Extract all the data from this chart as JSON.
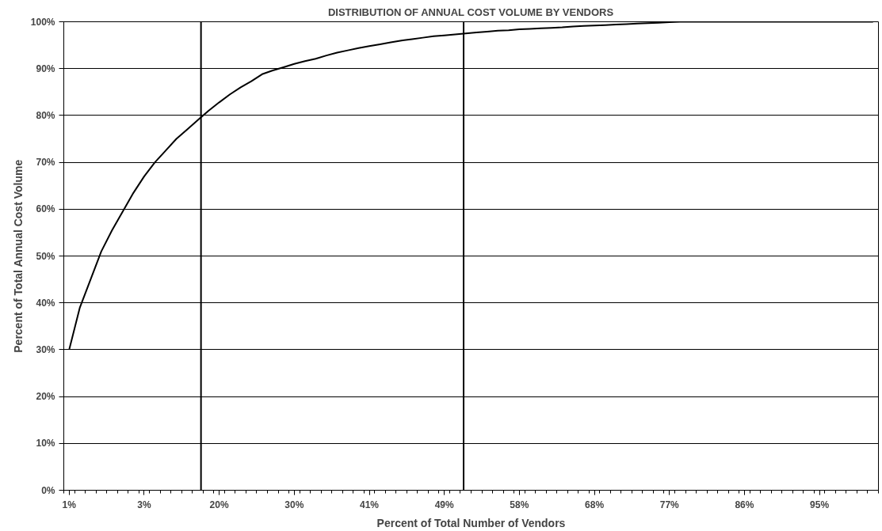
{
  "chart_data": {
    "type": "line",
    "title": "DISTRIBUTION OF ANNUAL COST VOLUME BY VENDORS",
    "xlabel": "Percent of Total Number of Vendors",
    "ylabel": "Percent of Total Annual Cost Volume",
    "categories": [
      "1%",
      null,
      null,
      null,
      null,
      null,
      null,
      "3%",
      null,
      null,
      null,
      null,
      null,
      null,
      "20%",
      null,
      null,
      null,
      null,
      null,
      null,
      "30%",
      null,
      null,
      null,
      null,
      null,
      null,
      "41%",
      null,
      null,
      null,
      null,
      null,
      null,
      "49%",
      null,
      null,
      null,
      null,
      null,
      null,
      "58%",
      null,
      null,
      null,
      null,
      null,
      null,
      "68%",
      null,
      null,
      null,
      null,
      null,
      null,
      "77%",
      null,
      null,
      null,
      null,
      null,
      null,
      "86%",
      null,
      null,
      null,
      null,
      null,
      null,
      "95%",
      null,
      null,
      null,
      null,
      null
    ],
    "series": [
      {
        "color": "#000000",
        "values": [
          30,
          39,
          45,
          51,
          55.5,
          59.5,
          63.5,
          67,
          70,
          72.5,
          75,
          77,
          79,
          81,
          82.8,
          84.5,
          86,
          87.3,
          88.8,
          89.6,
          90.3,
          91,
          91.6,
          92.1,
          92.8,
          93.4,
          93.9,
          94.4,
          94.8,
          95.2,
          95.6,
          96,
          96.3,
          96.6,
          96.9,
          97.1,
          97.3,
          97.5,
          97.7,
          97.9,
          98.1,
          98.2,
          98.4,
          98.5,
          98.6,
          98.7,
          98.8,
          99,
          99.1,
          99.2,
          99.3,
          99.4,
          99.5,
          99.6,
          99.7,
          99.8,
          99.9,
          100,
          100,
          100,
          100,
          100,
          100,
          100,
          100,
          100,
          100,
          100,
          100,
          100,
          100,
          100,
          100,
          100,
          100,
          100
        ]
      }
    ],
    "ylim": [
      0,
      100
    ],
    "yticks": [
      {
        "value": 0,
        "label": "0%"
      },
      {
        "value": 10,
        "label": "10%"
      },
      {
        "value": 20,
        "label": "20%"
      },
      {
        "value": 30,
        "label": "30%"
      },
      {
        "value": 40,
        "label": "40%"
      },
      {
        "value": 50,
        "label": "50%"
      },
      {
        "value": 60,
        "label": "60%"
      },
      {
        "value": 70,
        "label": "70%"
      },
      {
        "value": 80,
        "label": "80%"
      },
      {
        "value": 90,
        "label": "90%"
      },
      {
        "value": 100,
        "label": "100%"
      }
    ],
    "grid": "y",
    "marker": "none",
    "line_style": "solid"
  }
}
